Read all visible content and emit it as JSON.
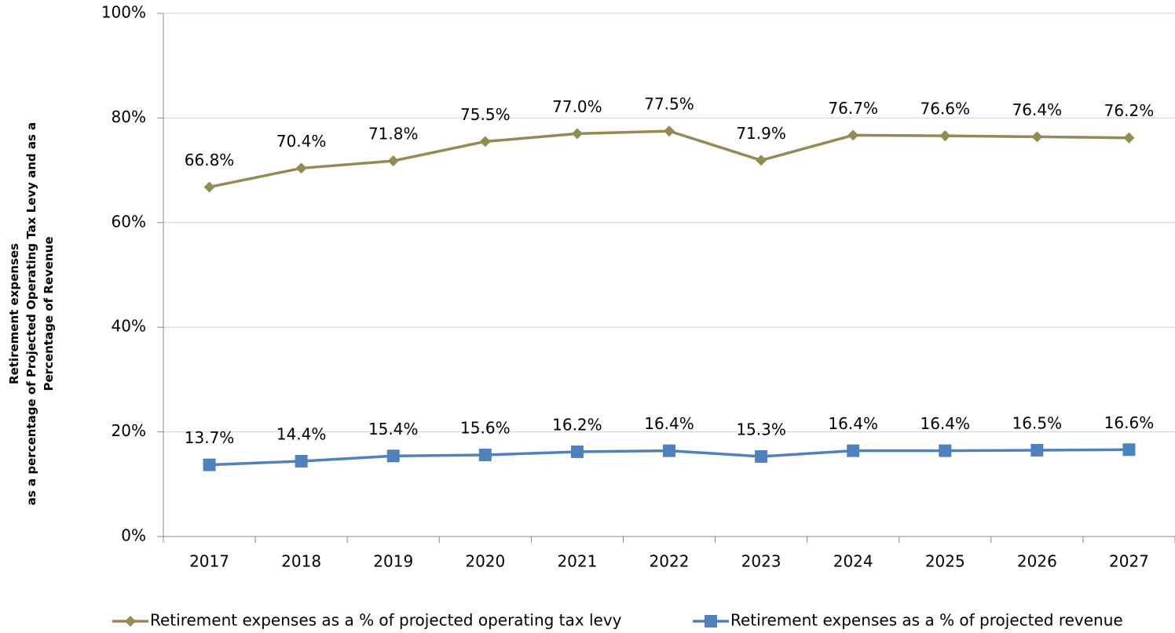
{
  "chart_data": {
    "type": "line",
    "ylabel": [
      "Retirement expenses",
      "as a percentage of Projected  Operating Tax Levy and as a",
      "Percentage of Revenue"
    ],
    "categories": [
      "2017",
      "2018",
      "2019",
      "2020",
      "2021",
      "2022",
      "2023",
      "2024",
      "2025",
      "2026",
      "2027"
    ],
    "series": [
      {
        "name": "Retirement expenses as a % of projected operating tax levy",
        "color": "#948a54",
        "marker": "diamond",
        "values": [
          66.8,
          70.4,
          71.8,
          75.5,
          77.0,
          77.5,
          71.9,
          76.7,
          76.6,
          76.4,
          76.2
        ],
        "value_labels": [
          "66.8%",
          "70.4%",
          "71.8%",
          "75.5%",
          "77.0%",
          "77.5%",
          "71.9%",
          "76.7%",
          "76.6%",
          "76.4%",
          "76.2%"
        ]
      },
      {
        "name": "Retirement expenses as a % of projected revenue",
        "color": "#4f81bd",
        "marker": "square",
        "values": [
          13.7,
          14.4,
          15.4,
          15.6,
          16.2,
          16.4,
          15.3,
          16.4,
          16.4,
          16.5,
          16.6
        ],
        "value_labels": [
          "13.7%",
          "14.4%",
          "15.4%",
          "15.6%",
          "16.2%",
          "16.4%",
          "15.3%",
          "16.4%",
          "16.4%",
          "16.5%",
          "16.6%"
        ]
      }
    ],
    "ylim": [
      0,
      100
    ],
    "yticks": [
      {
        "value": 0,
        "label": "0%"
      },
      {
        "value": 20,
        "label": "20%"
      },
      {
        "value": 40,
        "label": "40%"
      },
      {
        "value": 60,
        "label": "60%"
      },
      {
        "value": 80,
        "label": "80%"
      },
      {
        "value": 100,
        "label": "100%"
      }
    ],
    "grid": true,
    "legend": "bottom"
  }
}
